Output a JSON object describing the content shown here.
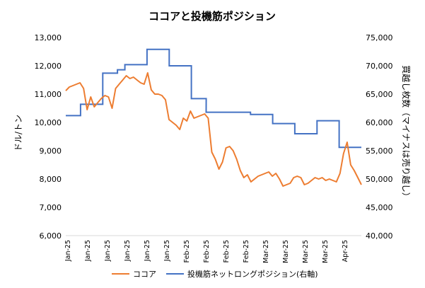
{
  "chart_data": {
    "type": "line",
    "title": "ココアと投機筋ポジション",
    "ylabel_left": "ドル/トン",
    "ylabel_right": "買越し枚数（マイナスは売り越し）",
    "ylim_left": [
      6000,
      13000
    ],
    "ylim_right": [
      40000,
      75000
    ],
    "yticks_left": [
      "6,000",
      "7,000",
      "8,000",
      "9,000",
      "10,000",
      "11,000",
      "12,000",
      "13,000"
    ],
    "yticks_right": [
      "40,000",
      "45,000",
      "50,000",
      "55,000",
      "60,000",
      "65,000",
      "70,000",
      "75,000"
    ],
    "x_tick_labels": [
      "Jan-25",
      "Jan-25",
      "Jan-25",
      "Jan-25",
      "Jan-25",
      "Jan-25",
      "Feb-25",
      "Feb-25",
      "Feb-25",
      "Feb-25",
      "Mar-25",
      "Mar-25",
      "Mar-25",
      "Mar-25",
      "Apr-25"
    ],
    "grid": false,
    "legend_position": "bottom",
    "series": [
      {
        "name": "ココア",
        "axis": "left",
        "color": "#ED7D31",
        "values": [
          11120,
          11250,
          11300,
          11350,
          11400,
          11200,
          10450,
          10900,
          10550,
          10700,
          10850,
          10950,
          10900,
          10500,
          11200,
          11350,
          11500,
          11650,
          11550,
          11600,
          11500,
          11400,
          11350,
          11750,
          11150,
          11000,
          11000,
          10950,
          10800,
          10100,
          10000,
          9900,
          9750,
          10150,
          10050,
          10400,
          10150,
          10200,
          10250,
          10300,
          10150,
          8950,
          8700,
          8350,
          8600,
          9100,
          9150,
          9000,
          8700,
          8300,
          8050,
          8150,
          7900,
          8000,
          8100,
          8150,
          8200,
          8250,
          8100,
          8200,
          8000,
          7750,
          7800,
          7850,
          8050,
          8100,
          8050,
          7800,
          7850,
          7950,
          8050,
          8000,
          8050,
          7950,
          8000,
          7950,
          7900,
          8200,
          8900,
          9300,
          8500,
          8300,
          8050,
          7800
        ]
      },
      {
        "name": "投機筋ネットロングポジション(右軸)",
        "axis": "right",
        "color": "#4472C4",
        "steps": [
          61200,
          61200,
          63200,
          63200,
          63200,
          68700,
          68700,
          69300,
          70200,
          70200,
          70200,
          72900,
          72900,
          72900,
          70000,
          70000,
          70000,
          64200,
          64200,
          61800,
          61800,
          61800,
          61800,
          61800,
          61800,
          61400,
          61400,
          61400,
          59800,
          59800,
          59800,
          58000,
          58000,
          58000,
          60300,
          60300,
          60300,
          55600,
          55600,
          55600
        ]
      }
    ]
  }
}
